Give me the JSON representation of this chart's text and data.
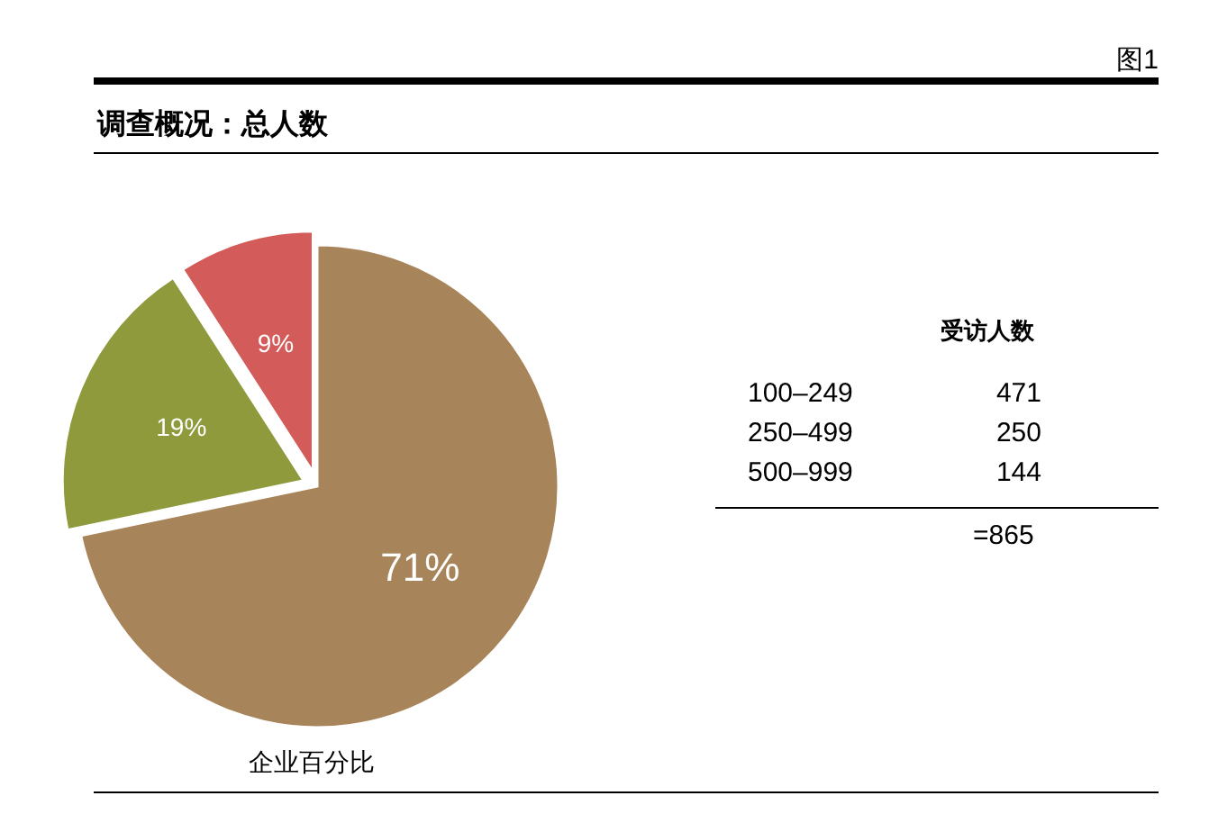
{
  "chart_data": {
    "type": "pie",
    "title": "调查概况：总人数",
    "xlabel": "企业百分比",
    "categories": [
      null,
      null,
      null
    ],
    "values": [
      71,
      19,
      9
    ],
    "value_labels": [
      "71%",
      "19%",
      "9%"
    ],
    "colors": [
      "#a8845a",
      "#8e9a3c",
      "#d35c5a"
    ],
    "annotations": [
      "图1",
      "受访人数",
      "100–249",
      "471",
      "250–499",
      "250",
      "500–999",
      "144",
      "=865"
    ]
  }
}
